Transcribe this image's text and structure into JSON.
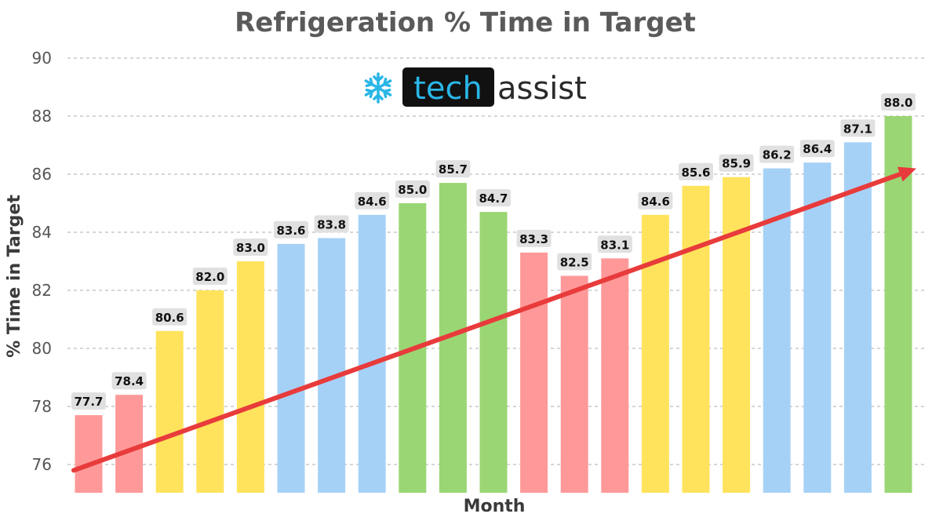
{
  "logo": {
    "tech": "tech",
    "assist": "assist",
    "icon": "snowflake-icon",
    "icon_color": "#29b6e6"
  },
  "chart_data": {
    "type": "bar",
    "title": "Refrigeration % Time in Target",
    "xlabel": "Month",
    "ylabel": "% Time in Target",
    "ylim": [
      75,
      90
    ],
    "yticks": [
      76,
      78,
      80,
      82,
      84,
      86,
      88,
      90
    ],
    "grid": true,
    "values": [
      77.7,
      78.4,
      80.6,
      82.0,
      83.0,
      83.6,
      83.8,
      84.6,
      85.0,
      85.7,
      84.7,
      83.3,
      82.5,
      83.1,
      84.6,
      85.6,
      85.9,
      86.2,
      86.4,
      87.1,
      88.0
    ],
    "colors": [
      "#ff9999",
      "#ff9999",
      "#ffe35c",
      "#ffe35c",
      "#ffe35c",
      "#a6d1f7",
      "#a6d1f7",
      "#a6d1f7",
      "#9ad673",
      "#9ad673",
      "#9ad673",
      "#ff9999",
      "#ff9999",
      "#ff9999",
      "#ffe35c",
      "#ffe35c",
      "#ffe35c",
      "#a6d1f7",
      "#a6d1f7",
      "#a6d1f7",
      "#9ad673"
    ],
    "trend": {
      "color": "#e83b3b",
      "start_value": 75.8,
      "end_value": 86.2
    }
  }
}
